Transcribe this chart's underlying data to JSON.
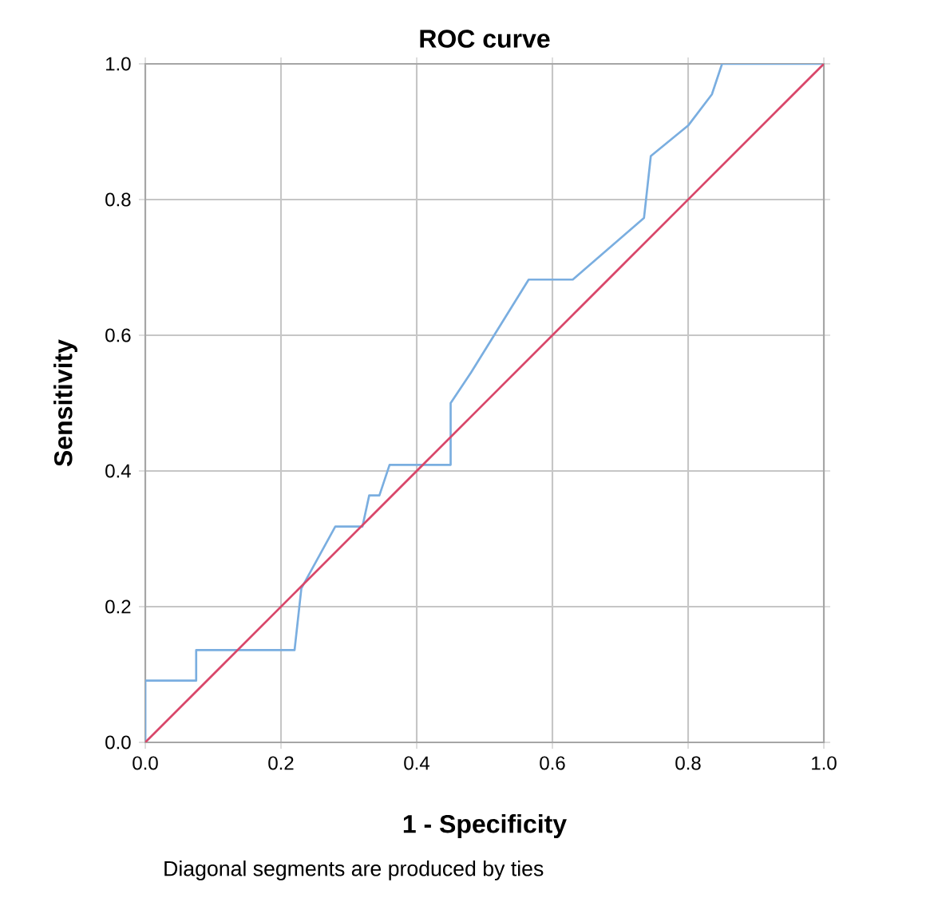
{
  "chart_data": {
    "type": "line",
    "title": "ROC curve",
    "xlabel": "1 - Specificity",
    "ylabel": "Sensitivity",
    "annotations": [
      "Diagonal segments are produced by ties"
    ],
    "xlim": [
      0,
      1
    ],
    "ylim": [
      0,
      1
    ],
    "xticks": [
      {
        "value": 0,
        "label": "0.0"
      },
      {
        "value": 0.2,
        "label": "0.2"
      },
      {
        "value": 0.4,
        "label": "0.4"
      },
      {
        "value": 0.6,
        "label": "0.6"
      },
      {
        "value": 0.8,
        "label": "0.8"
      },
      {
        "value": 1,
        "label": "1.0"
      }
    ],
    "yticks": [
      {
        "value": 0,
        "label": "0.0"
      },
      {
        "value": 0.2,
        "label": "0.2"
      },
      {
        "value": 0.4,
        "label": "0.4"
      },
      {
        "value": 0.6,
        "label": "0.6"
      },
      {
        "value": 0.8,
        "label": "0.8"
      },
      {
        "value": 1,
        "label": "1.0"
      }
    ],
    "grid": true,
    "series": [
      {
        "color": "#7aaee0",
        "x": [
          0,
          0,
          0.075,
          0.075,
          0.22,
          0.23,
          0.28,
          0.32,
          0.33,
          0.345,
          0.36,
          0.45,
          0.45,
          0.48,
          0.565,
          0.63,
          0.735,
          0.745,
          0.8,
          0.835,
          0.85,
          1
        ],
        "values": [
          0,
          0.091,
          0.091,
          0.136,
          0.136,
          0.227,
          0.318,
          0.318,
          0.364,
          0.364,
          0.409,
          0.409,
          0.5,
          0.545,
          0.682,
          0.682,
          0.773,
          0.864,
          0.909,
          0.955,
          1,
          1
        ]
      },
      {
        "color": "#d9476a",
        "x": [
          0,
          1
        ],
        "values": [
          0,
          1
        ]
      }
    ]
  }
}
